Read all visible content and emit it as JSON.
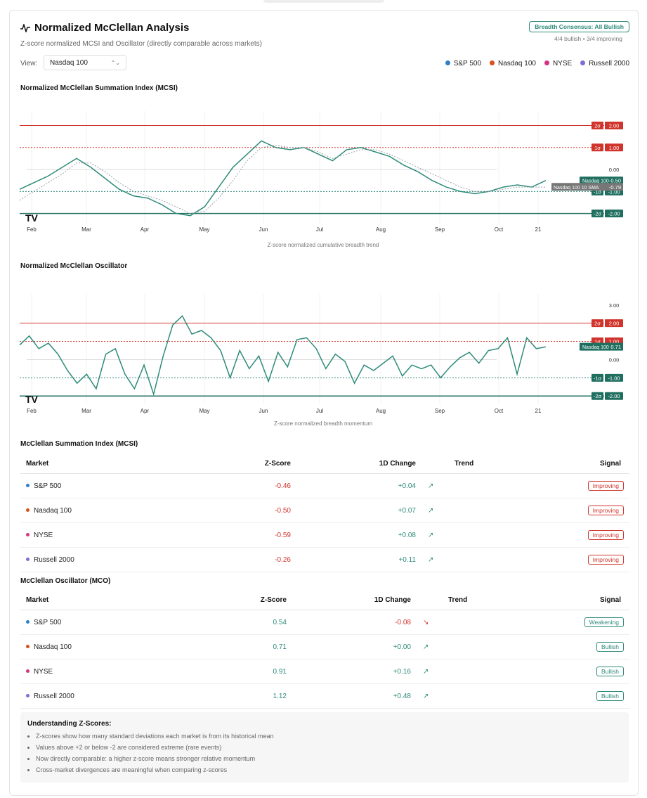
{
  "header": {
    "title": "Normalized McClellan Analysis",
    "subtitle": "Z-score normalized MCSI and Oscillator (directly comparable across markets)",
    "consensus_badge": "Breadth Consensus: All Bullish",
    "consensus_detail": "4/4 bullish • 3/4 improving"
  },
  "view": {
    "label": "View:",
    "selected": "Nasdaq 100"
  },
  "legend": [
    {
      "label": "S&P 500",
      "color": "#2f80c9"
    },
    {
      "label": "Nasdaq 100",
      "color": "#d9501e"
    },
    {
      "label": "NYSE",
      "color": "#d63384"
    },
    {
      "label": "Russell 2000",
      "color": "#7b6fd6"
    }
  ],
  "colors": {
    "accent": "#2e8b7a",
    "negative": "#d0342c",
    "sma": "#9aa0a6"
  },
  "mcsi_chart": {
    "title": "Normalized McClellan Summation Index (MCSI)",
    "caption": "Z-score normalized cumulative breadth trend",
    "months": [
      "Feb",
      "Mar",
      "Apr",
      "May",
      "Jun",
      "Jul",
      "Aug",
      "Sep",
      "Oct",
      "21"
    ],
    "levels": [
      {
        "label": "2σ",
        "value": "2.00"
      },
      {
        "label": "1σ",
        "value": "1.00"
      },
      {
        "label": "",
        "value": "0.00"
      },
      {
        "label": "-1σ",
        "value": "-1.00"
      },
      {
        "label": "-2σ",
        "value": "-2.00"
      }
    ],
    "series_label": "Nasdaq 100",
    "series_value": "-0.50",
    "sma_label": "Nasdaq 100 10 SMA",
    "sma_value": "-0.79"
  },
  "mco_chart": {
    "title": "Normalized McClellan Oscillator",
    "caption": "Z-score normalized breadth momentum",
    "months": [
      "Feb",
      "Mar",
      "Apr",
      "May",
      "Jun",
      "Jul",
      "Aug",
      "Sep",
      "Oct",
      "21"
    ],
    "levels": [
      {
        "label": "",
        "value": "3.00"
      },
      {
        "label": "2σ",
        "value": "2.00"
      },
      {
        "label": "1σ",
        "value": "1.00"
      },
      {
        "label": "",
        "value": "0.00"
      },
      {
        "label": "-1σ",
        "value": "-1.00"
      },
      {
        "label": "-2σ",
        "value": "-2.00"
      }
    ],
    "series_label": "Nasdaq 100",
    "series_value": "0.71"
  },
  "chart_data": [
    {
      "type": "line",
      "title": "Normalized McClellan Summation Index (MCSI)",
      "ylim": [
        -2.3,
        2.4
      ],
      "series": [
        {
          "name": "Nasdaq 100",
          "values": [
            -0.9,
            -0.6,
            -0.3,
            0.1,
            0.5,
            0.1,
            -0.4,
            -0.9,
            -1.2,
            -1.3,
            -1.6,
            -2.0,
            -2.1,
            -1.7,
            -0.8,
            0.1,
            0.7,
            1.3,
            1.0,
            0.9,
            1.0,
            0.7,
            0.4,
            0.9,
            1.0,
            0.8,
            0.6,
            0.2,
            -0.1,
            -0.5,
            -0.8,
            -1.0,
            -1.1,
            -1.0,
            -0.8,
            -0.7,
            -0.8,
            -0.5
          ]
        },
        {
          "name": "Nasdaq 100 10 SMA",
          "values": [
            -1.4,
            -1.0,
            -0.6,
            -0.2,
            0.3,
            0.3,
            -0.1,
            -0.6,
            -1.0,
            -1.2,
            -1.4,
            -1.7,
            -2.0,
            -1.9,
            -1.3,
            -0.5,
            0.4,
            1.0,
            1.1,
            1.0,
            1.0,
            0.8,
            0.5,
            0.7,
            0.9,
            0.9,
            0.7,
            0.4,
            0.1,
            -0.2,
            -0.5,
            -0.8,
            -1.0,
            -1.0,
            -0.9,
            -0.8,
            -0.8,
            -0.8
          ]
        }
      ]
    },
    {
      "type": "line",
      "title": "Normalized McClellan Oscillator",
      "ylim": [
        -2.3,
        3.3
      ],
      "series": [
        {
          "name": "Nasdaq 100",
          "values": [
            0.8,
            1.3,
            0.6,
            0.9,
            0.3,
            -0.6,
            -1.3,
            -0.8,
            -1.6,
            0.3,
            0.6,
            -0.8,
            -1.6,
            -0.3,
            -1.9,
            0.2,
            1.9,
            2.4,
            1.4,
            1.6,
            1.2,
            0.5,
            -1.0,
            0.5,
            -0.5,
            0.2,
            -1.2,
            0.4,
            -0.4,
            1.1,
            1.2,
            0.6,
            -0.5,
            0.3,
            -0.1,
            -1.3,
            -0.3,
            -0.6,
            -0.2,
            0.2,
            -0.9,
            -0.3,
            -0.5,
            -0.3,
            -1.0,
            -0.4,
            0.1,
            0.4,
            -0.2,
            0.5,
            0.6,
            1.2,
            -0.8,
            1.2,
            0.6,
            0.7
          ]
        }
      ]
    }
  ],
  "mcsi_table": {
    "title": "McClellan Summation Index (MCSI)",
    "headers": [
      "Market",
      "Z-Score",
      "1D Change",
      "Trend",
      "Signal"
    ],
    "rows": [
      {
        "market": "S&P 500",
        "dot": "#2f80c9",
        "z": "-0.46",
        "change": "+0.04",
        "trend": "up-icon",
        "signal": "Improving"
      },
      {
        "market": "Nasdaq 100",
        "dot": "#d9501e",
        "z": "-0.50",
        "change": "+0.07",
        "trend": "up-icon",
        "signal": "Improving"
      },
      {
        "market": "NYSE",
        "dot": "#d63384",
        "z": "-0.59",
        "change": "+0.08",
        "trend": "up-icon",
        "signal": "Improving"
      },
      {
        "market": "Russell 2000",
        "dot": "#7b6fd6",
        "z": "-0.26",
        "change": "+0.11",
        "trend": "up-icon",
        "signal": "Improving"
      }
    ]
  },
  "mco_table": {
    "title": "McClellan Oscillator (MCO)",
    "headers": [
      "Market",
      "Z-Score",
      "1D Change",
      "Trend",
      "Signal"
    ],
    "rows": [
      {
        "market": "S&P 500",
        "dot": "#2f80c9",
        "z": "0.54",
        "change": "-0.08",
        "trend": "down-icon",
        "signal": "Weakening"
      },
      {
        "market": "Nasdaq 100",
        "dot": "#d9501e",
        "z": "0.71",
        "change": "+0.00",
        "trend": "up-icon",
        "signal": "Bullish"
      },
      {
        "market": "NYSE",
        "dot": "#d63384",
        "z": "0.91",
        "change": "+0.16",
        "trend": "up-icon",
        "signal": "Bullish"
      },
      {
        "market": "Russell 2000",
        "dot": "#7b6fd6",
        "z": "1.12",
        "change": "+0.48",
        "trend": "up-icon",
        "signal": "Bullish"
      }
    ]
  },
  "info": {
    "title": "Understanding Z-Scores:",
    "items": [
      "Z-scores show how many standard deviations each market is from its historical mean",
      "Values above +2 or below -2 are considered extreme (rare events)",
      "Now directly comparable: a higher z-score means stronger relative momentum",
      "Cross-market divergences are meaningful when comparing z-scores"
    ]
  }
}
